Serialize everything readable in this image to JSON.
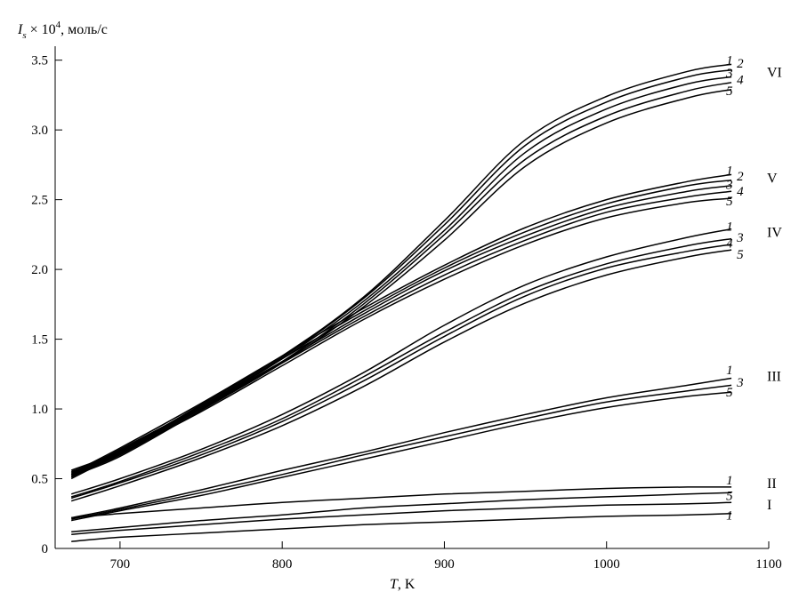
{
  "chart_data": {
    "type": "line",
    "xlabel": "T, K",
    "ylabel": "I_s × 10^4, моль/с",
    "ylabel_parts": {
      "symbol": "I",
      "sub": "s",
      "times": " × 10",
      "sup": "4",
      "rest": ", моль/с"
    },
    "xlabel_parts": {
      "symbol": "T",
      "rest": ", K"
    },
    "xlim": [
      660,
      1100
    ],
    "ylim": [
      0,
      3.6
    ],
    "x_ticks": [
      700,
      800,
      900,
      1000,
      1100
    ],
    "y_ticks": [
      0,
      0.5,
      1.0,
      1.5,
      2.0,
      2.5,
      3.0,
      3.5
    ],
    "y_tick_labels": [
      "0",
      "0.5",
      "1.0",
      "1.5",
      "2.0",
      "2.5",
      "3.0",
      "3.5"
    ],
    "grid": false,
    "x_sample": [
      670,
      700,
      750,
      800,
      850,
      900,
      950,
      1000,
      1050,
      1077
    ],
    "groups": [
      {
        "name": "VI",
        "label_y": 3.42,
        "series": [
          {
            "name": "1",
            "label_y": 3.5,
            "values": [
              0.56,
              0.7,
              1.03,
              1.38,
              1.8,
              2.35,
              2.93,
              3.24,
              3.42,
              3.47
            ]
          },
          {
            "name": "2",
            "label_y": 3.48,
            "values": [
              0.55,
              0.69,
              1.02,
              1.37,
              1.79,
              2.32,
              2.89,
              3.2,
              3.38,
              3.43
            ]
          },
          {
            "name": "3",
            "label_y": 3.41,
            "values": [
              0.54,
              0.68,
              1.01,
              1.36,
              1.77,
              2.28,
              2.84,
              3.15,
              3.33,
              3.38
            ]
          },
          {
            "name": "4",
            "label_y": 3.36,
            "values": [
              0.53,
              0.67,
              1.0,
              1.34,
              1.75,
              2.25,
              2.79,
              3.1,
              3.28,
              3.34
            ]
          },
          {
            "name": "5",
            "label_y": 3.28,
            "values": [
              0.52,
              0.66,
              0.99,
              1.33,
              1.73,
              2.21,
              2.74,
              3.05,
              3.23,
              3.29
            ]
          }
        ]
      },
      {
        "name": "V",
        "label_y": 2.66,
        "series": [
          {
            "name": "1",
            "label_y": 2.71,
            "values": [
              0.54,
              0.72,
              1.04,
              1.38,
              1.72,
              2.03,
              2.3,
              2.5,
              2.63,
              2.68
            ]
          },
          {
            "name": "2",
            "label_y": 2.67,
            "values": [
              0.53,
              0.71,
              1.02,
              1.36,
              1.7,
              2.01,
              2.27,
              2.47,
              2.6,
              2.64
            ]
          },
          {
            "name": "3",
            "label_y": 2.61,
            "values": [
              0.52,
              0.7,
              1.01,
              1.34,
              1.68,
              1.99,
              2.24,
              2.44,
              2.56,
              2.6
            ]
          },
          {
            "name": "4",
            "label_y": 2.56,
            "values": [
              0.51,
              0.69,
              1.0,
              1.33,
              1.66,
              1.96,
              2.21,
              2.41,
              2.52,
              2.56
            ]
          },
          {
            "name": "5",
            "label_y": 2.49,
            "values": [
              0.5,
              0.68,
              0.98,
              1.31,
              1.64,
              1.93,
              2.18,
              2.37,
              2.48,
              2.51
            ]
          }
        ]
      },
      {
        "name": "IV",
        "label_y": 2.27,
        "series": [
          {
            "name": "1",
            "label_y": 2.31,
            "values": [
              0.39,
              0.5,
              0.71,
              0.96,
              1.26,
              1.6,
              1.89,
              2.09,
              2.23,
              2.29
            ]
          },
          {
            "name": "3",
            "label_y": 2.23,
            "values": [
              0.37,
              0.48,
              0.69,
              0.93,
              1.23,
              1.55,
              1.84,
              2.04,
              2.17,
              2.22
            ]
          },
          {
            "name": "4",
            "label_y": 2.19,
            "values": [
              0.36,
              0.47,
              0.67,
              0.91,
              1.2,
              1.52,
              1.81,
              2.01,
              2.13,
              2.18
            ]
          },
          {
            "name": "5",
            "label_y": 2.11,
            "values": [
              0.34,
              0.45,
              0.65,
              0.88,
              1.16,
              1.48,
              1.76,
              1.96,
              2.09,
              2.14
            ]
          }
        ]
      },
      {
        "name": "III",
        "label_y": 1.24,
        "series": [
          {
            "name": "1",
            "label_y": 1.28,
            "values": [
              0.22,
              0.29,
              0.42,
              0.56,
              0.69,
              0.83,
              0.96,
              1.08,
              1.17,
              1.22
            ]
          },
          {
            "name": "3",
            "label_y": 1.19,
            "values": [
              0.21,
              0.28,
              0.4,
              0.53,
              0.67,
              0.8,
              0.93,
              1.05,
              1.13,
              1.17
            ]
          },
          {
            "name": "5",
            "label_y": 1.12,
            "values": [
              0.2,
              0.27,
              0.38,
              0.51,
              0.64,
              0.77,
              0.9,
              1.01,
              1.09,
              1.12
            ]
          }
        ]
      },
      {
        "name": "II",
        "label_y": 0.47,
        "series": [
          {
            "name": "1",
            "label_y": 0.49,
            "values": [
              0.22,
              0.25,
              0.29,
              0.33,
              0.36,
              0.39,
              0.41,
              0.43,
              0.44,
              0.44
            ]
          }
        ]
      },
      {
        "name": "I",
        "label_y": 0.32,
        "series": [
          {
            "name": "5",
            "label_y": 0.38,
            "values": [
              0.12,
              0.15,
              0.2,
              0.24,
              0.29,
              0.32,
              0.35,
              0.37,
              0.39,
              0.4
            ]
          },
          {
            "name": "",
            "label_y": null,
            "values": [
              0.1,
              0.13,
              0.17,
              0.21,
              0.24,
              0.27,
              0.29,
              0.31,
              0.32,
              0.33
            ]
          },
          {
            "name": "1",
            "label_y": 0.24,
            "values": [
              0.05,
              0.08,
              0.11,
              0.14,
              0.17,
              0.19,
              0.21,
              0.23,
              0.24,
              0.25
            ]
          }
        ]
      }
    ]
  }
}
